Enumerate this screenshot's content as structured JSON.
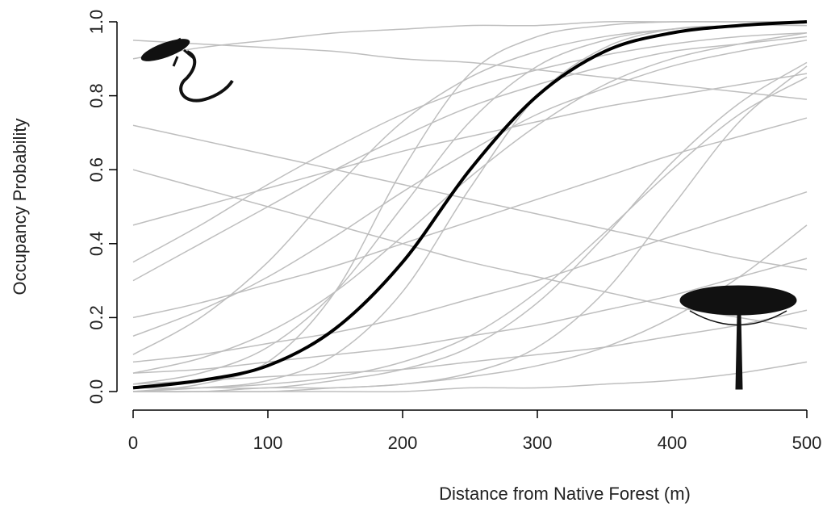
{
  "chart_data": {
    "type": "line",
    "x_label": "Distance from Native Forest (m)",
    "y_label": "Occupancy Probability",
    "x": [
      0,
      50,
      100,
      150,
      200,
      250,
      300,
      350,
      400,
      450,
      500
    ],
    "xlim": [
      0,
      500
    ],
    "xticks": [
      0,
      100,
      200,
      300,
      400,
      500
    ],
    "ylim": [
      0,
      1
    ],
    "yticks": [
      {
        "value": 0,
        "label": "0.0"
      },
      {
        "value": 0.2,
        "label": "0.2"
      },
      {
        "value": 0.4,
        "label": "0.4"
      },
      {
        "value": 0.6,
        "label": "0.6"
      },
      {
        "value": 0.8,
        "label": "0.8"
      },
      {
        "value": 1,
        "label": "1.0"
      }
    ],
    "series": [
      {
        "color": "#bebebe",
        "values": [
          0.02,
          0.05,
          0.12,
          0.27,
          0.5,
          0.73,
          0.88,
          0.95,
          0.98,
          0.99,
          1.0
        ]
      },
      {
        "color": "#bebebe",
        "values": [
          0.9,
          0.93,
          0.95,
          0.97,
          0.98,
          0.99,
          0.99,
          1.0,
          1.0,
          1.0,
          1.0
        ]
      },
      {
        "color": "#bebebe",
        "values": [
          0.0,
          0.0,
          0.01,
          0.01,
          0.02,
          0.04,
          0.07,
          0.12,
          0.2,
          0.31,
          0.45
        ]
      },
      {
        "color": "#bebebe",
        "values": [
          0.3,
          0.4,
          0.5,
          0.6,
          0.69,
          0.77,
          0.83,
          0.88,
          0.92,
          0.94,
          0.96
        ]
      },
      {
        "color": "#bebebe",
        "values": [
          0.05,
          0.06,
          0.08,
          0.1,
          0.12,
          0.15,
          0.18,
          0.22,
          0.26,
          0.31,
          0.36
        ]
      },
      {
        "color": "#bebebe",
        "values": [
          0.0,
          0.01,
          0.03,
          0.1,
          0.27,
          0.55,
          0.8,
          0.93,
          0.98,
          0.99,
          1.0
        ]
      },
      {
        "color": "#bebebe",
        "values": [
          0.72,
          0.68,
          0.64,
          0.6,
          0.56,
          0.52,
          0.48,
          0.44,
          0.4,
          0.36,
          0.33
        ]
      },
      {
        "color": "#bebebe",
        "values": [
          0.1,
          0.2,
          0.35,
          0.55,
          0.73,
          0.85,
          0.92,
          0.96,
          0.98,
          0.99,
          0.99
        ]
      },
      {
        "color": "#bebebe",
        "values": [
          0.0,
          0.0,
          0.0,
          0.01,
          0.02,
          0.05,
          0.12,
          0.27,
          0.5,
          0.73,
          0.88
        ]
      },
      {
        "color": "#bebebe",
        "values": [
          0.45,
          0.5,
          0.55,
          0.6,
          0.65,
          0.69,
          0.73,
          0.77,
          0.8,
          0.83,
          0.86
        ]
      },
      {
        "color": "#bebebe",
        "values": [
          0.02,
          0.03,
          0.04,
          0.05,
          0.06,
          0.08,
          0.1,
          0.12,
          0.15,
          0.18,
          0.22
        ]
      },
      {
        "color": "#bebebe",
        "values": [
          0.2,
          0.24,
          0.29,
          0.34,
          0.4,
          0.46,
          0.52,
          0.58,
          0.64,
          0.69,
          0.74
        ]
      },
      {
        "color": "#bebebe",
        "values": [
          0.0,
          0.02,
          0.08,
          0.27,
          0.6,
          0.86,
          0.96,
          0.99,
          1.0,
          1.0,
          1.0
        ]
      },
      {
        "color": "#bebebe",
        "values": [
          0.6,
          0.55,
          0.5,
          0.45,
          0.4,
          0.35,
          0.31,
          0.27,
          0.23,
          0.2,
          0.17
        ]
      },
      {
        "color": "#bebebe",
        "values": [
          0.01,
          0.01,
          0.02,
          0.04,
          0.08,
          0.15,
          0.27,
          0.43,
          0.6,
          0.75,
          0.85
        ]
      },
      {
        "color": "#bebebe",
        "values": [
          0.15,
          0.22,
          0.31,
          0.42,
          0.54,
          0.65,
          0.75,
          0.82,
          0.88,
          0.92,
          0.95
        ]
      },
      {
        "color": "#bebebe",
        "values": [
          0.0,
          0.0,
          0.0,
          0.0,
          0.0,
          0.01,
          0.01,
          0.02,
          0.03,
          0.05,
          0.08
        ]
      },
      {
        "color": "#bebebe",
        "values": [
          0.35,
          0.45,
          0.56,
          0.66,
          0.75,
          0.82,
          0.87,
          0.91,
          0.94,
          0.96,
          0.97
        ]
      },
      {
        "color": "#bebebe",
        "values": [
          0.05,
          0.09,
          0.16,
          0.27,
          0.42,
          0.58,
          0.72,
          0.83,
          0.9,
          0.94,
          0.97
        ]
      },
      {
        "color": "#bebebe",
        "values": [
          0.95,
          0.94,
          0.93,
          0.92,
          0.9,
          0.89,
          0.87,
          0.85,
          0.83,
          0.81,
          0.79
        ]
      },
      {
        "color": "#bebebe",
        "values": [
          0.08,
          0.1,
          0.13,
          0.16,
          0.2,
          0.25,
          0.3,
          0.36,
          0.42,
          0.48,
          0.54
        ]
      },
      {
        "color": "#bebebe",
        "values": [
          0.0,
          0.01,
          0.01,
          0.03,
          0.06,
          0.12,
          0.24,
          0.42,
          0.62,
          0.78,
          0.89
        ]
      },
      {
        "color": "#000000",
        "values": [
          0.01,
          0.03,
          0.07,
          0.17,
          0.35,
          0.6,
          0.8,
          0.92,
          0.97,
          0.99,
          1.0
        ]
      }
    ]
  }
}
